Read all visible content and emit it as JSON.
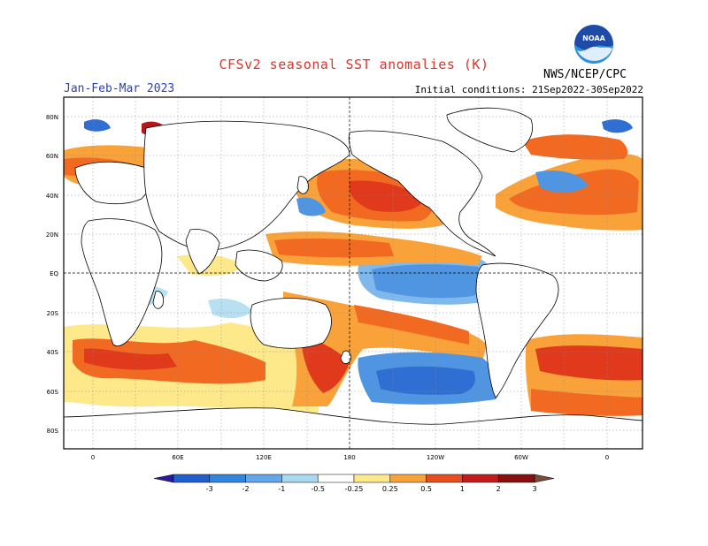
{
  "header": {
    "title": "CFSv2 seasonal SST anomalies (K)",
    "period": "Jan-Feb-Mar 2023",
    "initial_conditions": "Initial conditions: 21Sep2022-30Sep2022",
    "agency": "NWS/NCEP/CPC",
    "logo_text": "NOAA"
  },
  "axes": {
    "lat_labels": [
      "80N",
      "60N",
      "40N",
      "20N",
      "EQ",
      "20S",
      "40S",
      "60S",
      "80S"
    ],
    "lon_labels": [
      "0",
      "60E",
      "120E",
      "180",
      "120W",
      "60W",
      "0"
    ]
  },
  "colorbar": {
    "levels": [
      "-3",
      "-2",
      "-1",
      "-0.5",
      "-0.25",
      "0.25",
      "0.5",
      "1",
      "2",
      "3"
    ],
    "colors": [
      "#2b1a9e",
      "#1f5fcf",
      "#2f86e0",
      "#62a6ec",
      "#a8d8f2",
      "#ffffff",
      "#fde88a",
      "#f9a23a",
      "#e84e1b",
      "#c41c1c",
      "#8a0f0f",
      "#7a4a3a"
    ]
  },
  "anomaly_colors": {
    "light_cool": "#b7e0f3",
    "cool": "#7fb8ec",
    "mid_cool": "#4f95e2",
    "strong_cool": "#2f6fd4",
    "light_warm": "#fde88a",
    "warm": "#f9a23a",
    "mid_warm": "#f26a22",
    "strong_warm": "#e0391c",
    "extreme_warm": "#b61818"
  }
}
